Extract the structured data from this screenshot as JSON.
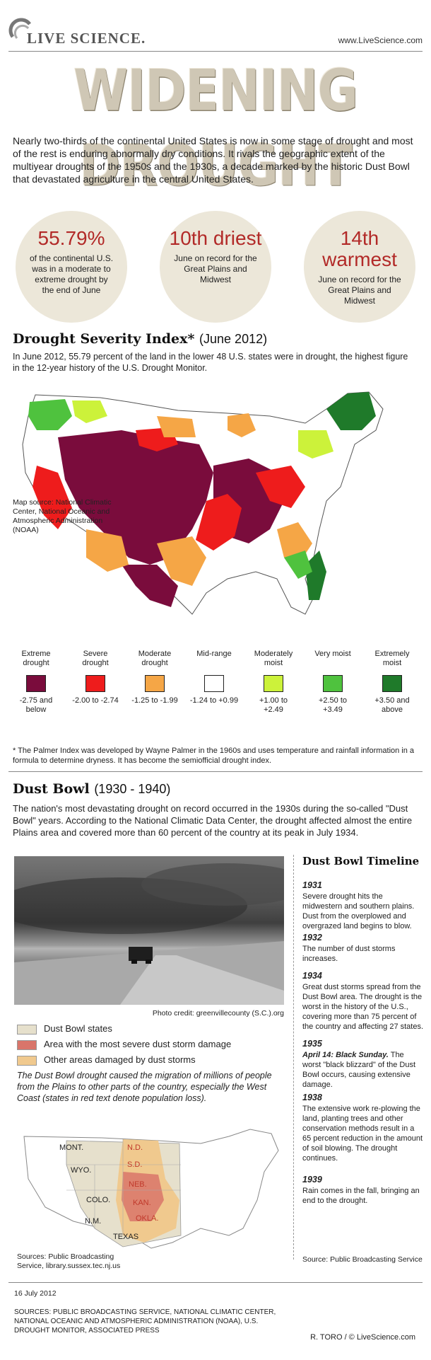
{
  "header": {
    "logo_text": "LIVE SCIENCE.",
    "site_url": "www.LiveScience.com"
  },
  "title": "WIDENING DROUGHT",
  "intro": "Nearly two-thirds of the continental United States is now in some stage of drought and most of the rest is enduring abnormally dry conditions. It rivals the geographic extent of the multiyear droughts of the 1950s and the 1930s, a decade marked by the historic Dust Bowl that devastated agriculture in the central United States.",
  "stats": [
    {
      "big": "55.79%",
      "small": "of the continental U.S. was in a moderate to extreme drought by the end of June"
    },
    {
      "big": "10th driest",
      "small": "June on record for the Great Plains and Midwest"
    },
    {
      "big": "14th warmest",
      "small": "June on record for the Great Plains and Midwest"
    }
  ],
  "severity": {
    "heading": "Drought Severity Index*",
    "heading_sub": "(June 2012)",
    "text": "In June 2012, 55.79 percent of the land in the lower 48 U.S. states were in drought, the highest figure in the 12-year history of the U.S. Drought Monitor.",
    "map_source": "Map source: National Climatic Center, National Oceanic and Atmospheric Administration (NOAA)",
    "legend": [
      {
        "label": "Extreme drought",
        "range": "-2.75 and below",
        "color": "#7a0c3c"
      },
      {
        "label": "Severe drought",
        "range": "-2.00 to -2.74",
        "color": "#ee1c1c"
      },
      {
        "label": "Moderate drought",
        "range": "-1.25 to -1.99",
        "color": "#f5a646"
      },
      {
        "label": "Mid-range",
        "range": "-1.24 to +0.99",
        "color": "#ffffff"
      },
      {
        "label": "Moderately moist",
        "range": "+1.00 to +2.49",
        "color": "#ccf23a"
      },
      {
        "label": "Very moist",
        "range": "+2.50 to +3.49",
        "color": "#4fc23e"
      },
      {
        "label": "Extremely moist",
        "range": "+3.50 and above",
        "color": "#1f7a2a"
      }
    ],
    "footnote": "* The Palmer Index was developed by Wayne Palmer in the 1960s and uses temperature and rainfall information in a formula to determine dryness. It has become the semiofficial drought index."
  },
  "dustbowl": {
    "heading": "Dust Bowl",
    "heading_sub": "(1930 - 1940)",
    "text": "The nation's most devastating drought on record occurred in the 1930s during the so-called \"Dust Bowl\" years. According to the National Climatic Data Center, the drought affected almost the entire Plains area and covered more than 60 percent of the country at its peak in July 1934.",
    "photo_credit": "Photo credit: greenvillecounty (S.C.).org",
    "legend": [
      {
        "label": "Dust Bowl states",
        "color": "#e6e0cc"
      },
      {
        "label": "Area with the most severe dust storm damage",
        "color": "#d9756a"
      },
      {
        "label": "Other areas damaged by dust storms",
        "color": "#f0c98e"
      }
    ],
    "caption": "The Dust Bowl drought caused the migration of millions of people from the Plains to other parts of the country, especially the West Coast (states in red text denote population loss).",
    "states": [
      {
        "name": "MONT.",
        "loss": false
      },
      {
        "name": "N.D.",
        "loss": true
      },
      {
        "name": "S.D.",
        "loss": true
      },
      {
        "name": "WYO.",
        "loss": false
      },
      {
        "name": "NEB.",
        "loss": true
      },
      {
        "name": "COLO.",
        "loss": false
      },
      {
        "name": "KAN.",
        "loss": true
      },
      {
        "name": "OKLA.",
        "loss": true
      },
      {
        "name": "N.M.",
        "loss": false
      },
      {
        "name": "TEXAS",
        "loss": false
      }
    ],
    "sources": "Sources: Public Broadcasting Service, library.sussex.tec.nj.us"
  },
  "timeline": {
    "title": "Dust Bowl Timeline",
    "entries": [
      {
        "year": "1931",
        "text": "Severe drought hits the midwestern and southern plains. Dust from the overplowed and overgrazed land begins to blow."
      },
      {
        "year": "1932",
        "text": "The number of dust storms increases."
      },
      {
        "year": "1934",
        "text": "Great dust storms spread from the Dust Bowl area. The drought is the worst in the history of the U.S., covering more than 75 percent of the country and affecting 27 states."
      },
      {
        "year": "1935",
        "emph": "April 14: Black Sunday.",
        "text": "The worst \"black blizzard\" of the Dust Bowl occurs, causing extensive damage."
      },
      {
        "year": "1938",
        "text": "The extensive work re-plowing the land, planting trees and other conservation methods result in a 65 percent reduction in the amount of soil blowing. The drought continues."
      },
      {
        "year": "1939",
        "text": "Rain comes in the fall, bringing an end to the drought."
      }
    ],
    "source": "Source: Public Broadcasting Service"
  },
  "footer": {
    "date": "16 July 2012",
    "sources": "SOURCES: PUBLIC BROADCASTING SERVICE, NATIONAL CLIMATIC CENTER, NATIONAL OCEANIC AND ATMOSPHERIC ADMINISTRATION (NOAA), U.S. DROUGHT MONITOR, ASSOCIATED PRESS",
    "credit": "R. TORO / © LiveScience.com"
  }
}
